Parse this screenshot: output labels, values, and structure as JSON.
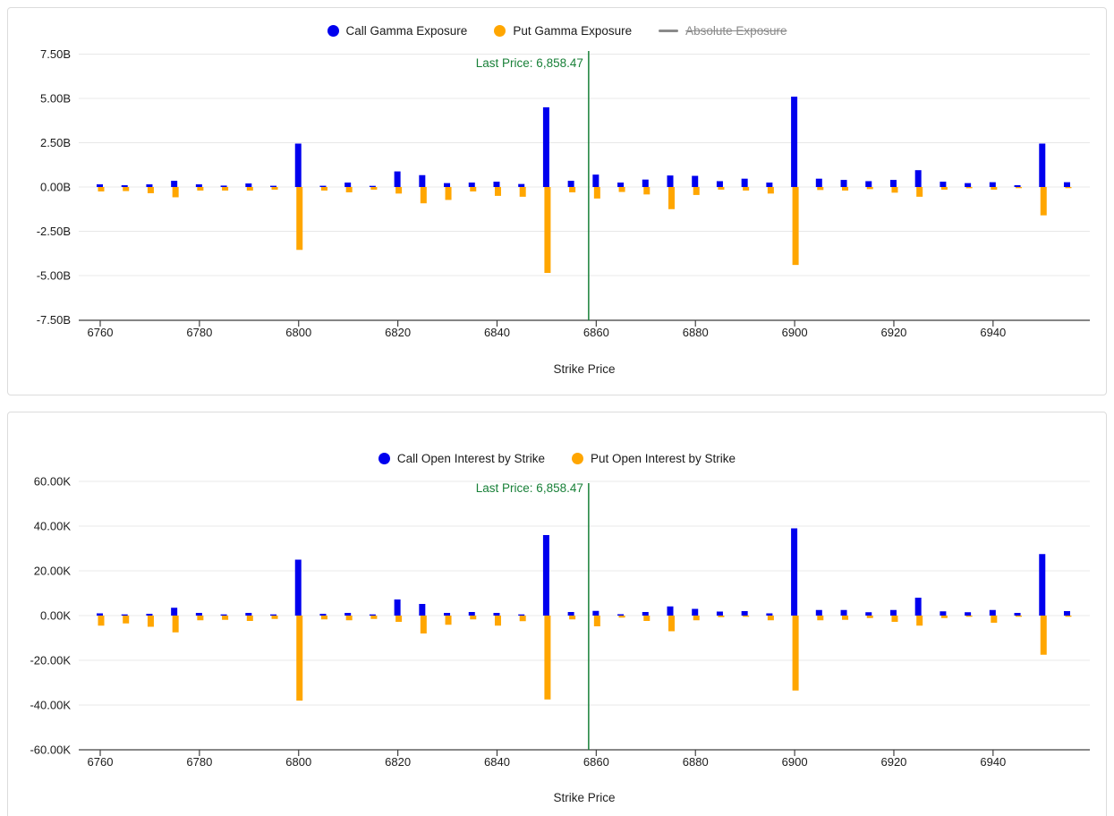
{
  "colors": {
    "call": "#0000ee",
    "put": "#ffa600",
    "last_price": "#188038",
    "grid": "#e8e8e8",
    "axis_line": "#424242",
    "disabled_legend": "#8a8a8a",
    "panel_border": "#dcdcdc"
  },
  "chart_data": [
    {
      "type": "bar",
      "title": "",
      "xlabel": "Strike Price",
      "ylabel": "",
      "unit": "B",
      "ylim": [
        -7.5,
        7.5
      ],
      "grid": true,
      "legend_position": "top-center",
      "legend": [
        {
          "label": "Call Gamma Exposure",
          "color_key": "call",
          "shape": "circle",
          "disabled": false
        },
        {
          "label": "Put Gamma Exposure",
          "color_key": "put",
          "shape": "circle",
          "disabled": false
        },
        {
          "label": "Absolute Exposure",
          "color_key": "disabled_legend",
          "shape": "line",
          "disabled": true
        }
      ],
      "yticks": [
        "7.50B",
        "5.00B",
        "2.50B",
        "0.00B",
        "-2.50B",
        "-5.00B",
        "-7.50B"
      ],
      "xticks": [
        6760,
        6780,
        6800,
        6820,
        6840,
        6860,
        6880,
        6900,
        6920,
        6940
      ],
      "x": [
        6760,
        6765,
        6770,
        6775,
        6780,
        6785,
        6790,
        6795,
        6800,
        6805,
        6810,
        6815,
        6820,
        6825,
        6830,
        6835,
        6840,
        6845,
        6850,
        6855,
        6860,
        6865,
        6870,
        6875,
        6880,
        6885,
        6890,
        6895,
        6900,
        6905,
        6910,
        6915,
        6920,
        6925,
        6930,
        6935,
        6940,
        6945,
        6950,
        6955
      ],
      "series": [
        {
          "name": "Call Gamma Exposure",
          "color_key": "call",
          "values": [
            0.15,
            0.1,
            0.15,
            0.35,
            0.15,
            0.08,
            0.2,
            0.07,
            2.45,
            0.07,
            0.25,
            0.05,
            0.88,
            0.67,
            0.22,
            0.25,
            0.3,
            0.17,
            4.5,
            0.35,
            0.7,
            0.25,
            0.42,
            0.65,
            0.63,
            0.33,
            0.47,
            0.25,
            5.1,
            0.47,
            0.4,
            0.33,
            0.4,
            0.95,
            0.3,
            0.22,
            0.27,
            0.1,
            2.45,
            0.27
          ]
        },
        {
          "name": "Put Gamma Exposure",
          "color_key": "put",
          "values": [
            -0.25,
            -0.23,
            -0.35,
            -0.58,
            -0.2,
            -0.2,
            -0.2,
            -0.15,
            -3.55,
            -0.2,
            -0.3,
            -0.15,
            -0.37,
            -0.92,
            -0.73,
            -0.25,
            -0.5,
            -0.55,
            -4.85,
            -0.3,
            -0.65,
            -0.28,
            -0.42,
            -1.25,
            -0.45,
            -0.15,
            -0.2,
            -0.37,
            -4.4,
            -0.17,
            -0.2,
            -0.12,
            -0.32,
            -0.55,
            -0.15,
            -0.07,
            -0.15,
            -0.05,
            -1.6,
            -0.05
          ]
        }
      ],
      "annotation": {
        "label": "Last Price: 6,858.47",
        "x": 6858.47
      }
    },
    {
      "type": "bar",
      "title": "",
      "xlabel": "Strike Price",
      "ylabel": "",
      "unit": "K",
      "ylim": [
        -60,
        60
      ],
      "grid": true,
      "legend_position": "top-center",
      "legend": [
        {
          "label": "Call Open Interest by Strike",
          "color_key": "call",
          "shape": "circle",
          "disabled": false
        },
        {
          "label": "Put Open Interest by Strike",
          "color_key": "put",
          "shape": "circle",
          "disabled": false
        }
      ],
      "yticks": [
        "60.00K",
        "40.00K",
        "20.00K",
        "0.00K",
        "-20.00K",
        "-40.00K",
        "-60.00K"
      ],
      "xticks": [
        6760,
        6780,
        6800,
        6820,
        6840,
        6860,
        6880,
        6900,
        6920,
        6940
      ],
      "x": [
        6760,
        6765,
        6770,
        6775,
        6780,
        6785,
        6790,
        6795,
        6800,
        6805,
        6810,
        6815,
        6820,
        6825,
        6830,
        6835,
        6840,
        6845,
        6850,
        6855,
        6860,
        6865,
        6870,
        6875,
        6880,
        6885,
        6890,
        6895,
        6900,
        6905,
        6910,
        6915,
        6920,
        6925,
        6930,
        6935,
        6940,
        6945,
        6950,
        6955
      ],
      "series": [
        {
          "name": "Call Open Interest by Strike",
          "color_key": "call",
          "values": [
            1.0,
            0.5,
            0.8,
            3.5,
            1.2,
            0.5,
            1.2,
            0.3,
            25.0,
            0.8,
            1.2,
            0.5,
            7.2,
            5.2,
            1.2,
            1.6,
            1.2,
            0.4,
            36.0,
            1.6,
            2.1,
            0.6,
            1.6,
            4.1,
            3.0,
            1.8,
            2.0,
            1.0,
            39.0,
            2.5,
            2.5,
            1.5,
            2.5,
            8.0,
            1.9,
            1.5,
            2.5,
            1.2,
            27.5,
            2.0
          ]
        },
        {
          "name": "Put Open Interest by Strike",
          "color_key": "put",
          "values": [
            -4.5,
            -3.5,
            -5.0,
            -7.5,
            -2.1,
            -1.9,
            -2.4,
            -1.5,
            -38.0,
            -1.7,
            -2.1,
            -1.5,
            -2.8,
            -8.0,
            -4.1,
            -1.7,
            -4.5,
            -2.5,
            -37.5,
            -1.7,
            -4.8,
            -0.9,
            -2.4,
            -7.0,
            -2.1,
            -0.7,
            -0.5,
            -2.1,
            -33.5,
            -2.1,
            -1.9,
            -1.1,
            -2.8,
            -4.5,
            -1.1,
            -0.5,
            -3.2,
            -0.2,
            -17.5,
            -0.5
          ]
        }
      ],
      "annotation": {
        "label": "Last Price: 6,858.47",
        "x": 6858.47
      }
    }
  ]
}
